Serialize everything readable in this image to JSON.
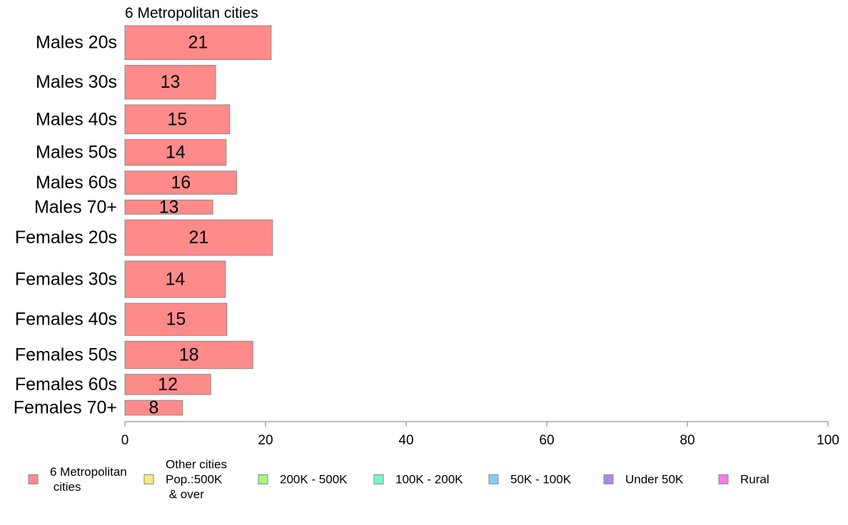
{
  "chart_data": {
    "type": "bar",
    "orientation": "horizontal",
    "title": "6 Metropolitan cities",
    "categories": [
      "Males 20s",
      "Males 30s",
      "Males 40s",
      "Males 50s",
      "Males 60s",
      "Males 70+",
      "Females 20s",
      "Females 30s",
      "Females 40s",
      "Females 50s",
      "Females 60s",
      "Females 70+"
    ],
    "bar_weights": [
      10.5,
      10.5,
      9.0,
      8.0,
      7.2,
      4.4,
      11.0,
      11.3,
      10.0,
      8.5,
      6.3,
      4.6
    ],
    "series": [
      {
        "name": "6 Metropolitan cities",
        "values": [
          21,
          13,
          15,
          14,
          16,
          13,
          21,
          14,
          15,
          18,
          12,
          8
        ],
        "display_values": [
          20.8,
          12.9,
          14.9,
          14.4,
          15.9,
          12.5,
          21.0,
          14.3,
          14.5,
          18.2,
          12.2,
          8.2
        ],
        "color": "#ff8a8a"
      }
    ],
    "xlim": [
      0,
      100
    ],
    "xticks": [
      "0",
      "20",
      "40",
      "60",
      "80",
      "100"
    ],
    "grid": false,
    "legend_position": "bottom",
    "legend": [
      {
        "lines": [
          "6 Metropolitan",
          " cities"
        ],
        "color": "#ff8a8a"
      },
      {
        "lines": [
          "Other cities",
          "Pop.:500K",
          " & over"
        ],
        "color": "#ffe680"
      },
      {
        "lines": [
          "200K - 500K"
        ],
        "color": "#a3f77f"
      },
      {
        "lines": [
          "100K - 200K"
        ],
        "color": "#7cf7c4"
      },
      {
        "lines": [
          "50K - 100K"
        ],
        "color": "#8cc8f5"
      },
      {
        "lines": [
          "Under 50K"
        ],
        "color": "#a88af0"
      },
      {
        "lines": [
          "Rural"
        ],
        "color": "#f57de6"
      }
    ]
  }
}
